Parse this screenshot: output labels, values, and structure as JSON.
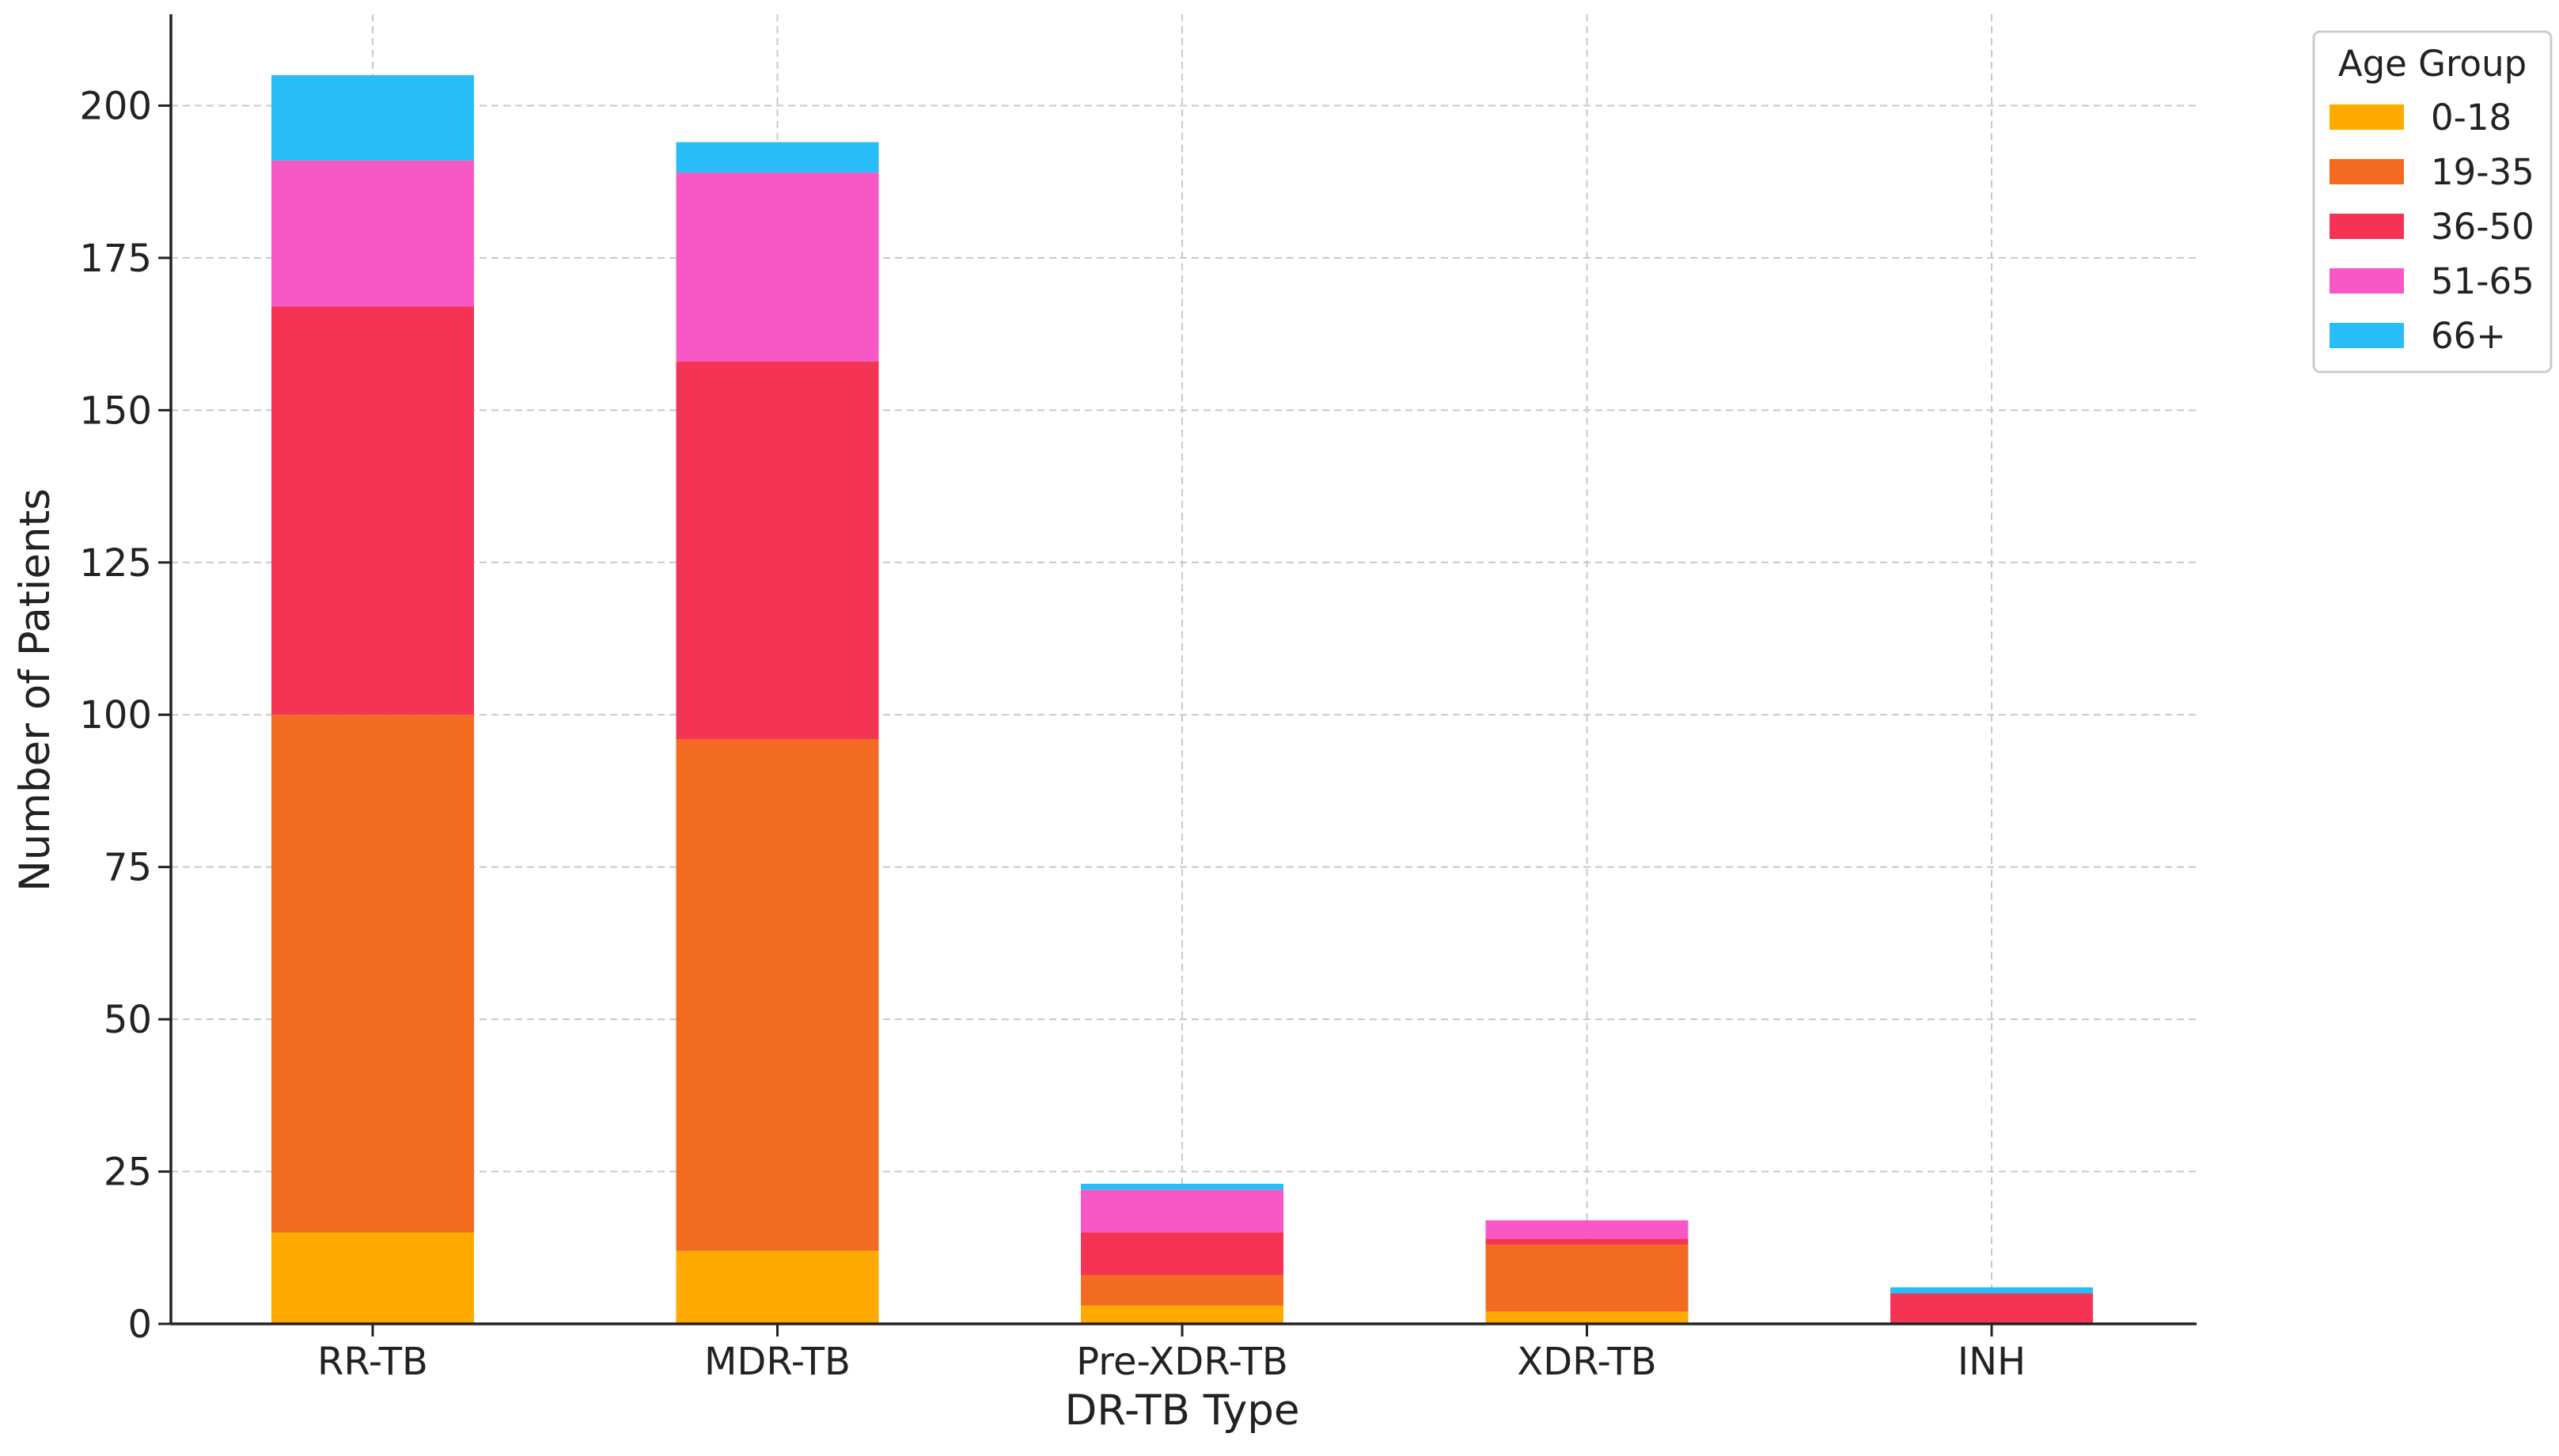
{
  "chart_data": {
    "type": "bar",
    "stacked": true,
    "categories": [
      "RR-TB",
      "MDR-TB",
      "Pre-XDR-TB",
      "XDR-TB",
      "INH"
    ],
    "series": [
      {
        "name": "0-18",
        "color": "#FFAA00",
        "values": [
          15,
          12,
          3,
          2,
          0
        ]
      },
      {
        "name": "19-35",
        "color": "#F26B21",
        "values": [
          85,
          84,
          5,
          11,
          0
        ]
      },
      {
        "name": "36-50",
        "color": "#F53355",
        "values": [
          67,
          62,
          7,
          1,
          5
        ]
      },
      {
        "name": "51-65",
        "color": "#F857C6",
        "values": [
          24,
          31,
          7,
          3,
          0
        ]
      },
      {
        "name": "66+",
        "color": "#29BDF8",
        "values": [
          14,
          5,
          1,
          0,
          1
        ]
      }
    ],
    "xlabel": "DR-TB Type",
    "ylabel": "Number of Patients",
    "ylim": [
      0,
      215
    ],
    "yticks": [
      0,
      25,
      50,
      75,
      100,
      125,
      150,
      175,
      200
    ],
    "grid": true,
    "legend": {
      "title": "Age Group",
      "placement": "upper-right-outside"
    }
  }
}
